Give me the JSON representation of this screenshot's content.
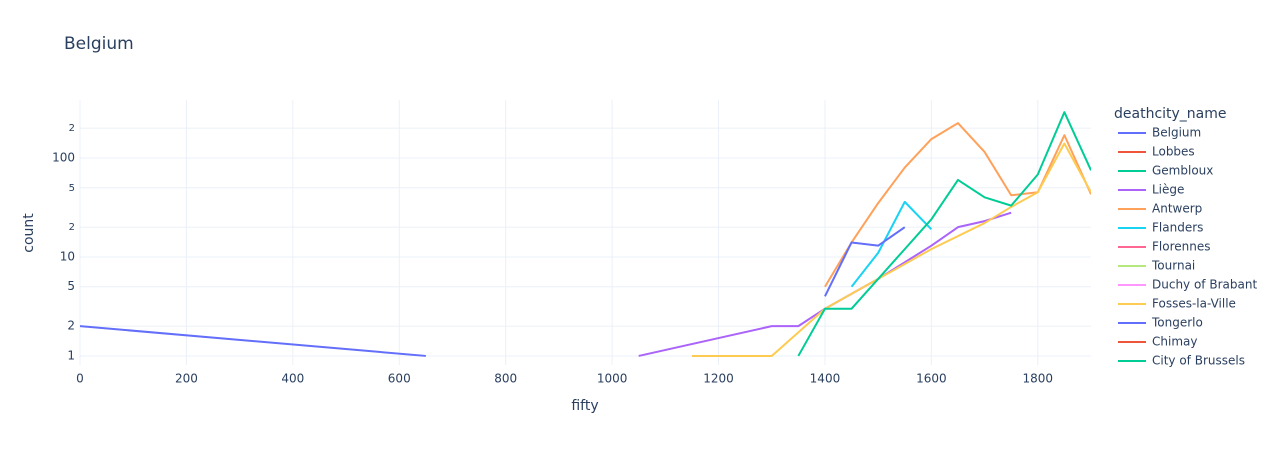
{
  "chart_data": {
    "type": "line",
    "title": "Belgium",
    "x_label": "fifty",
    "y_label": "count",
    "legend_title": "deathcity_name",
    "xlim": [
      0,
      1900
    ],
    "xticks": [
      0,
      200,
      400,
      600,
      800,
      1000,
      1200,
      1400,
      1600,
      1800
    ],
    "ylim": [
      0.81,
      385
    ],
    "log_y": true,
    "grid": true,
    "legend_position": "right",
    "yticks": [
      1,
      2,
      5,
      10,
      {
        "value": 20,
        "label": "2"
      },
      {
        "value": 50,
        "label": "5"
      },
      100,
      {
        "value": 200,
        "label": "2"
      }
    ],
    "series": [
      {
        "name": "Belgium",
        "color": "#636efa",
        "x": [
          0,
          650
        ],
        "values": [
          2,
          1
        ]
      },
      {
        "name": "Lobbes",
        "color": "#EF553B",
        "x": [],
        "values": []
      },
      {
        "name": "Gembloux",
        "color": "#00cc96",
        "x": [],
        "values": []
      },
      {
        "name": "Liège",
        "color": "#ab63fa",
        "x": [
          1050,
          1300,
          1350,
          1400,
          1500,
          1600,
          1650,
          1700,
          1750
        ],
        "values": [
          1,
          2,
          2,
          3,
          6,
          13,
          20,
          23,
          28
        ]
      },
      {
        "name": "Antwerp",
        "color": "#FFA15A",
        "x": [
          1400,
          1450,
          1500,
          1550,
          1600,
          1650,
          1700,
          1750,
          1800,
          1850,
          1900
        ],
        "values": [
          5,
          14,
          35,
          80,
          155,
          225,
          115,
          42,
          45,
          170,
          43
        ]
      },
      {
        "name": "Flanders",
        "color": "#19d3f3",
        "x": [
          1450,
          1500,
          1550,
          1600
        ],
        "values": [
          5,
          11,
          36,
          19
        ]
      },
      {
        "name": "Florennes",
        "color": "#FF6692",
        "x": [],
        "values": []
      },
      {
        "name": "Tournai",
        "color": "#B6E880",
        "x": [],
        "values": []
      },
      {
        "name": "Duchy of Brabant",
        "color": "#FF97FF",
        "x": [],
        "values": []
      },
      {
        "name": "Fosses-la-Ville",
        "color": "#FECB52",
        "x": [
          1150,
          1300,
          1400,
          1500,
          1600,
          1700,
          1750,
          1800,
          1850,
          1900
        ],
        "values": [
          1,
          1,
          3,
          6,
          12,
          22,
          32,
          45,
          140,
          45
        ]
      },
      {
        "name": "Tongerlo",
        "color": "#636efa",
        "x": [
          1400,
          1450,
          1500,
          1550
        ],
        "values": [
          4,
          14,
          13,
          20
        ]
      },
      {
        "name": "Chimay",
        "color": "#EF553B",
        "x": [],
        "values": []
      },
      {
        "name": "City of Brussels",
        "color": "#00cc96",
        "x": [
          1350,
          1400,
          1450,
          1500,
          1550,
          1600,
          1650,
          1700,
          1750,
          1800,
          1850,
          1900
        ],
        "values": [
          1,
          3,
          3,
          6,
          12,
          24,
          60,
          40,
          33,
          68,
          290,
          75
        ]
      }
    ]
  }
}
